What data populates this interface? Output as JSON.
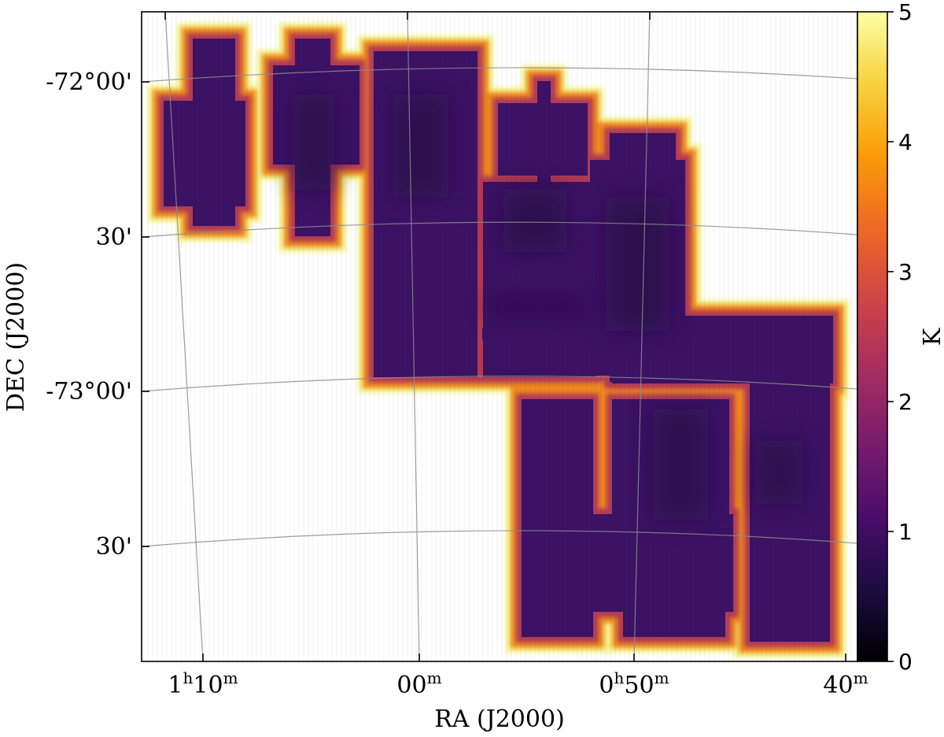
{
  "chart_data": {
    "type": "heatmap",
    "xlabel": "RA (J2000)",
    "ylabel": "DEC (J2000)",
    "x_ticks": [
      {
        "main": "1",
        "sup1": "h",
        "mid": "10",
        "sup2": "m"
      },
      {
        "main": "",
        "sup1": "",
        "mid": "00",
        "sup2": "m"
      },
      {
        "main": "0",
        "sup1": "h",
        "mid": "50",
        "sup2": "m"
      },
      {
        "main": "",
        "sup1": "",
        "mid": "40",
        "sup2": "m"
      }
    ],
    "y_ticks": [
      "-72°00'",
      "30'",
      "-73°00'",
      "30'"
    ],
    "ra_range_deg": [
      18.85,
      9.9
    ],
    "dec_range_deg": [
      -73.97,
      -71.74
    ],
    "grid": true,
    "colorbar": {
      "label": "K",
      "range": [
        0,
        5
      ],
      "ticks": [
        "0",
        "1",
        "2",
        "3",
        "4",
        "5"
      ],
      "colormap": "inferno",
      "stops": [
        "#000004",
        "#1b0c41",
        "#4a0c6b",
        "#781c6d",
        "#a52c60",
        "#cf4446",
        "#ed6925",
        "#fb9b06",
        "#f7d13d",
        "#fcffa4"
      ]
    },
    "colors": {
      "interior": "#3c1265",
      "interior_dark": "#260c45",
      "rim_mid": "#b23a57",
      "rim_orange": "#f08a1d",
      "rim_yellow": "#f6f58f"
    }
  }
}
